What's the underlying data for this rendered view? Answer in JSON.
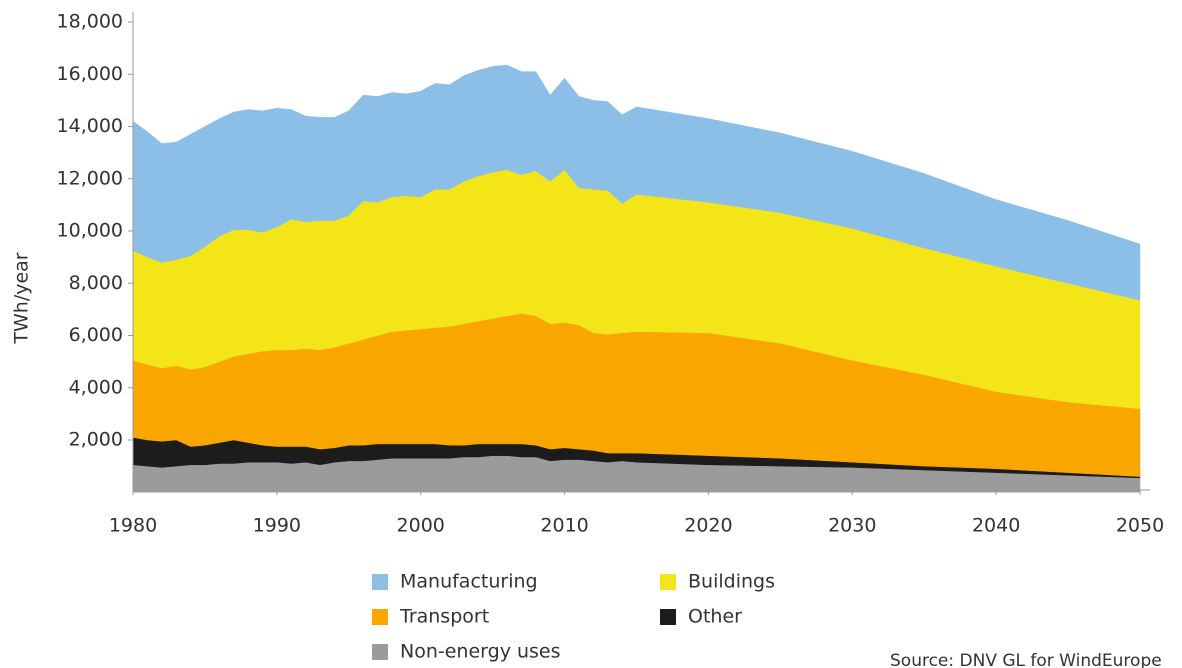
{
  "chart_data": {
    "type": "stacked-area",
    "y_label": "TWh/year",
    "source": "Source: DNV GL for WindEurope",
    "x": [
      1980,
      1981,
      1982,
      1983,
      1984,
      1985,
      1986,
      1987,
      1988,
      1989,
      1990,
      1991,
      1992,
      1993,
      1994,
      1995,
      1996,
      1997,
      1998,
      1999,
      2000,
      2001,
      2002,
      2003,
      2004,
      2005,
      2006,
      2007,
      2008,
      2009,
      2010,
      2011,
      2012,
      2013,
      2014,
      2015,
      2020,
      2025,
      2030,
      2035,
      2040,
      2045,
      2050
    ],
    "xlim": [
      1980,
      2050
    ],
    "xticks": [
      1980,
      1990,
      2000,
      2010,
      2020,
      2030,
      2040,
      2050
    ],
    "ylim": [
      0,
      18000
    ],
    "yticks": [
      {
        "value": 2000,
        "label": "2,000"
      },
      {
        "value": 4000,
        "label": "4,000"
      },
      {
        "value": 6000,
        "label": "6,000"
      },
      {
        "value": 8000,
        "label": "8,000"
      },
      {
        "value": 10000,
        "label": "10,000"
      },
      {
        "value": 12000,
        "label": "12,000"
      },
      {
        "value": 14000,
        "label": "14,000"
      },
      {
        "value": 16000,
        "label": "16,000"
      },
      {
        "value": 18000,
        "label": "18,000"
      }
    ],
    "series": [
      {
        "name": "Non-energy uses",
        "color": "#9b9b9b",
        "values": [
          1050,
          1000,
          950,
          1000,
          1050,
          1050,
          1100,
          1100,
          1150,
          1150,
          1150,
          1100,
          1150,
          1050,
          1150,
          1200,
          1200,
          1250,
          1300,
          1300,
          1300,
          1300,
          1300,
          1350,
          1350,
          1400,
          1400,
          1350,
          1350,
          1200,
          1250,
          1250,
          1200,
          1150,
          1200,
          1150,
          1050,
          1000,
          950,
          850,
          750,
          650,
          550
        ]
      },
      {
        "name": "Other",
        "color": "#1c1c1c",
        "values": [
          1050,
          1000,
          1000,
          1000,
          700,
          750,
          800,
          900,
          750,
          650,
          600,
          650,
          600,
          600,
          550,
          600,
          600,
          600,
          550,
          550,
          550,
          550,
          500,
          450,
          500,
          450,
          450,
          500,
          450,
          450,
          450,
          400,
          400,
          350,
          300,
          350,
          350,
          300,
          200,
          150,
          150,
          100,
          50
        ]
      },
      {
        "name": "Transport",
        "color": "#f9a600",
        "values": [
          2950,
          2900,
          2800,
          2850,
          2950,
          3000,
          3100,
          3200,
          3400,
          3600,
          3700,
          3700,
          3750,
          3800,
          3850,
          3900,
          4050,
          4150,
          4300,
          4350,
          4400,
          4450,
          4550,
          4650,
          4700,
          4800,
          4900,
          5000,
          4950,
          4800,
          4800,
          4750,
          4500,
          4550,
          4600,
          4650,
          4700,
          4400,
          3900,
          3500,
          2950,
          2700,
          2600
        ]
      },
      {
        "name": "Buildings",
        "color": "#f4e518",
        "values": [
          4200,
          4100,
          4050,
          4050,
          4350,
          4600,
          4800,
          4850,
          4750,
          4550,
          4700,
          5000,
          4850,
          4950,
          4850,
          4900,
          5300,
          5100,
          5150,
          5150,
          5050,
          5300,
          5250,
          5450,
          5550,
          5600,
          5600,
          5300,
          5550,
          5450,
          5850,
          5250,
          5500,
          5500,
          4950,
          5250,
          5000,
          5000,
          5050,
          4850,
          4800,
          4550,
          4150
        ]
      },
      {
        "name": "Manufacturing",
        "color": "#8bbfe8",
        "values": [
          4950,
          4800,
          4550,
          4500,
          4650,
          4600,
          4500,
          4500,
          4600,
          4650,
          4550,
          4200,
          4050,
          3950,
          3950,
          4000,
          4050,
          4050,
          4000,
          3900,
          4050,
          4050,
          4000,
          4050,
          4050,
          4050,
          4000,
          3950,
          3800,
          3300,
          3500,
          3500,
          3400,
          3400,
          3400,
          3350,
          3200,
          3050,
          2950,
          2850,
          2550,
          2400,
          2150
        ]
      }
    ]
  }
}
